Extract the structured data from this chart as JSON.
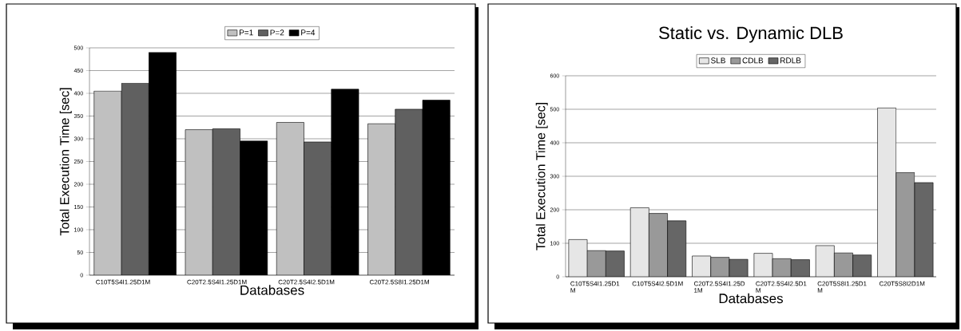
{
  "chart_data": [
    {
      "type": "bar",
      "xlabel": "Databases",
      "ylabel": "Total Execution Time [sec]",
      "categories": [
        "C10T5S4I1.25D1M",
        "C20T2.5S4I1.25D1M",
        "C20T2.5S4I2.5D1M",
        "C20T2.5S8I1.25D1M"
      ],
      "series": [
        {
          "name": "P=1",
          "color": "#c0c0c0",
          "values": [
            405,
            320,
            336,
            333
          ]
        },
        {
          "name": "P=2",
          "color": "#606060",
          "values": [
            422,
            322,
            293,
            365
          ]
        },
        {
          "name": "P=4",
          "color": "#000000",
          "values": [
            490,
            295,
            409,
            385
          ]
        }
      ],
      "ylim": [
        0,
        500
      ],
      "yticks": [
        0,
        50,
        100,
        150,
        200,
        250,
        300,
        350,
        400,
        450,
        500
      ],
      "grid": "y",
      "legend": "top"
    },
    {
      "type": "bar",
      "title": "Static vs. Dynamic DLB",
      "xlabel": "Databases",
      "ylabel": "Total Execution Time [sec]",
      "categories": [
        "C10T5S4I1.25D1M",
        "C10T5S4I2.5D1M",
        "C20T2.5S4I1.25D1M",
        "C20T2.5S4I2.5D1M",
        "C20T5S8I1.25D1M",
        "C20T5S8I2D1M"
      ],
      "series": [
        {
          "name": "SLB",
          "color": "#e6e6e6",
          "values": [
            111,
            206,
            62,
            70,
            93,
            504
          ]
        },
        {
          "name": "CDLB",
          "color": "#999999",
          "values": [
            78,
            189,
            58,
            54,
            71,
            311
          ]
        },
        {
          "name": "RDLB",
          "color": "#666666",
          "values": [
            77,
            167,
            52,
            51,
            65,
            281
          ]
        }
      ],
      "ylim": [
        0,
        600
      ],
      "yticks": [
        0,
        100,
        200,
        300,
        400,
        500,
        600
      ],
      "grid": "y",
      "legend": "top"
    }
  ]
}
